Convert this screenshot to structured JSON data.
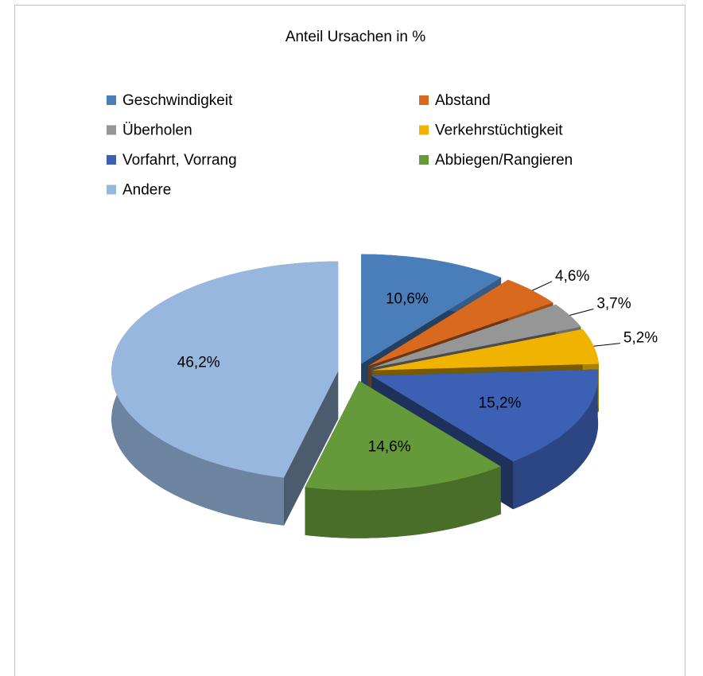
{
  "chart_data": {
    "type": "pie",
    "title": "Anteil Ursachen in %",
    "categories": [
      "Geschwindigkeit",
      "Abstand",
      "Überholen",
      "Verkehrstüchtigkeit",
      "Vorfahrt, Vorrang",
      "Abbiegen/Rangieren",
      "Andere"
    ],
    "values": [
      10.6,
      4.6,
      3.7,
      5.2,
      15.2,
      14.6,
      46.2
    ],
    "value_labels": [
      "10,6%",
      "4,6%",
      "3,7%",
      "5,2%",
      "15,2%",
      "14,6%",
      "46,2%"
    ],
    "colors": [
      "#4a7ebb",
      "#d9691f",
      "#969696",
      "#f0b400",
      "#3c61b4",
      "#65993a",
      "#98b7de"
    ],
    "legend": "top"
  }
}
